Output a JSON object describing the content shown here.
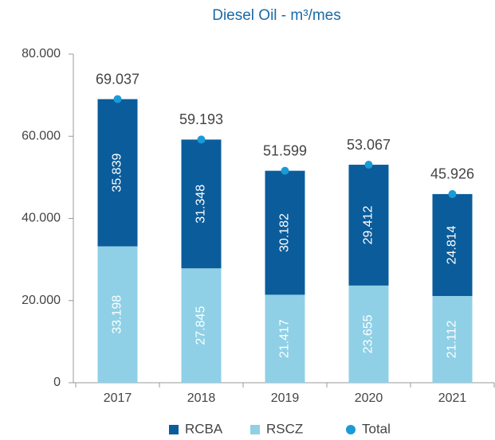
{
  "chart_data": {
    "type": "bar",
    "stacked": true,
    "title": "Diesel Oil - m³/mes",
    "categories": [
      "2017",
      "2018",
      "2019",
      "2020",
      "2021"
    ],
    "series": [
      {
        "name": "RSCZ",
        "color": "#8fd0e6",
        "values": [
          33198,
          27845,
          21417,
          23655,
          21112
        ],
        "value_labels": [
          "33.198",
          "27.845",
          "21.417",
          "23.655",
          "21.112"
        ]
      },
      {
        "name": "RCBA",
        "color": "#0b5c9b",
        "values": [
          35839,
          31348,
          30182,
          29412,
          24814
        ],
        "value_labels": [
          "35.839",
          "31.348",
          "30.182",
          "29.412",
          "24.814"
        ]
      },
      {
        "name": "Total",
        "type": "scatter",
        "color": "#1a9ad6",
        "values": [
          69037,
          59193,
          51599,
          53067,
          45926
        ],
        "value_labels": [
          "69.037",
          "59.193",
          "51.599",
          "53.067",
          "45.926"
        ]
      }
    ],
    "legend_order": [
      1,
      0,
      2
    ],
    "ylim": [
      0,
      80000
    ],
    "yticks": [
      0,
      {
        "value": 20000,
        "label": "20.000"
      },
      {
        "value": 40000,
        "label": "40.000"
      },
      {
        "value": 60000,
        "label": "60.000"
      },
      {
        "value": 80000,
        "label": "80.000"
      }
    ]
  }
}
